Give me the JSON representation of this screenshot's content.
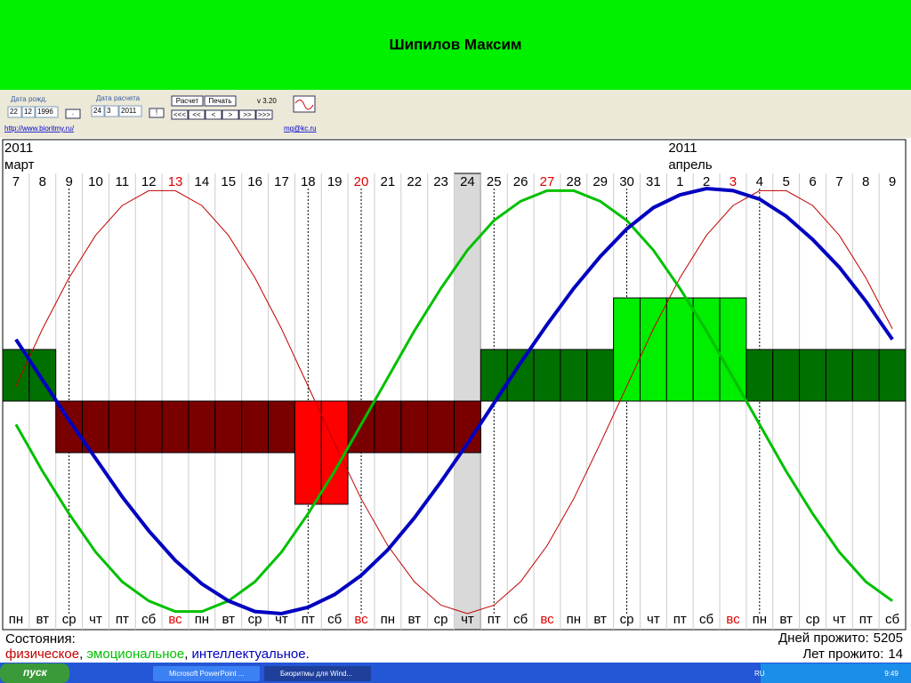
{
  "header": {
    "title": "Шипилов Максим"
  },
  "toolbar": {
    "birth_label": "Дата рожд.",
    "birth": [
      "22",
      "12",
      "1996"
    ],
    "birth_button": ".",
    "calc_label": "Дата расчета",
    "calc": [
      "24",
      "3",
      "2011"
    ],
    "calc_button": "!",
    "buttons": [
      "Расчет",
      "Печать"
    ],
    "version": "v 3.20",
    "nav": [
      "<<<",
      "<<",
      "<",
      ">",
      ">>",
      ">>>"
    ],
    "site": "http://www.bioritmy.ru/",
    "email": "mg@kc.ru"
  },
  "chart": {
    "months": [
      {
        "year": "2011",
        "name": "март"
      },
      {
        "year": "2011",
        "name": "апрель"
      }
    ],
    "days": [
      7,
      8,
      9,
      10,
      11,
      12,
      13,
      14,
      15,
      16,
      17,
      18,
      19,
      20,
      21,
      22,
      23,
      24,
      25,
      26,
      27,
      28,
      29,
      30,
      31,
      1,
      2,
      3,
      4,
      5,
      6,
      7,
      8,
      9
    ],
    "weekdays": [
      "пн",
      "вт",
      "ср",
      "чт",
      "пт",
      "сб",
      "вс",
      "пн",
      "вт",
      "ср",
      "чт",
      "пт",
      "сб",
      "вс",
      "пн",
      "вт",
      "ср",
      "чт",
      "пт",
      "сб",
      "вс",
      "пн",
      "вт",
      "ср",
      "чт",
      "пт",
      "сб",
      "вс",
      "пн",
      "вт",
      "ср",
      "чт",
      "пт",
      "сб"
    ],
    "red_days": [
      6,
      13,
      20,
      27
    ],
    "red_color": "#e00000",
    "today": 17,
    "critical": [
      2,
      11,
      13,
      18,
      23,
      28
    ],
    "states": [
      1,
      1,
      -1,
      -1,
      -1,
      -1,
      -1,
      -1,
      -1,
      -1,
      -1,
      -2,
      -2,
      -1,
      -1,
      -1,
      -1,
      -1,
      1,
      1,
      1,
      1,
      1,
      2,
      2,
      2,
      2,
      2,
      1,
      1,
      1,
      1,
      1,
      1
    ],
    "state_colors": {
      "2": "#00ee00",
      "1": "#007000",
      "-1": "#7a0000",
      "-2": "#ff0000"
    },
    "series": [
      {
        "name": "физическое",
        "color": "#c00000",
        "width": 1,
        "values": [
          0.07,
          0.34,
          0.58,
          0.78,
          0.92,
          0.99,
          0.99,
          0.92,
          0.78,
          0.58,
          0.34,
          0.07,
          -0.2,
          -0.46,
          -0.68,
          -0.85,
          -0.96,
          -1.0,
          -0.96,
          -0.85,
          -0.68,
          -0.46,
          -0.2,
          0.07,
          0.34,
          0.58,
          0.78,
          0.92,
          0.99,
          0.99,
          0.92,
          0.78,
          0.58,
          0.34
        ]
      },
      {
        "name": "эмоциональное",
        "color": "#00c000",
        "width": 3,
        "values": [
          -0.11,
          -0.33,
          -0.53,
          -0.71,
          -0.85,
          -0.94,
          -0.99,
          -0.99,
          -0.94,
          -0.85,
          -0.71,
          -0.53,
          -0.33,
          -0.11,
          0.11,
          0.33,
          0.53,
          0.71,
          0.85,
          0.94,
          0.99,
          0.99,
          0.94,
          0.85,
          0.71,
          0.53,
          0.33,
          0.11,
          -0.11,
          -0.33,
          -0.53,
          -0.71,
          -0.85,
          -0.94
        ]
      },
      {
        "name": "интеллектуальное",
        "color": "#0000c0",
        "width": 4,
        "values": [
          0.29,
          0.1,
          -0.09,
          -0.27,
          -0.45,
          -0.61,
          -0.75,
          -0.86,
          -0.94,
          -0.99,
          -1.0,
          -0.97,
          -0.91,
          -0.82,
          -0.7,
          -0.55,
          -0.38,
          -0.2,
          -0.01,
          0.18,
          0.36,
          0.53,
          0.68,
          0.81,
          0.91,
          0.97,
          1.0,
          0.99,
          0.95,
          0.87,
          0.76,
          0.63,
          0.47,
          0.29
        ]
      }
    ],
    "status_label": "Состояния:",
    "legend_separator": ", ",
    "legend_end": ".",
    "days_lived": {
      "label": "Дней прожито:",
      "value": 5205
    },
    "years_lived": {
      "label": "Лет прожито:",
      "value": 14
    }
  },
  "taskbar": {
    "start": "пуск",
    "tasks": [
      "Microsoft PowerPoint ...",
      "Биоритмы для Wind..."
    ],
    "lang": "RU",
    "time": "9:49"
  }
}
